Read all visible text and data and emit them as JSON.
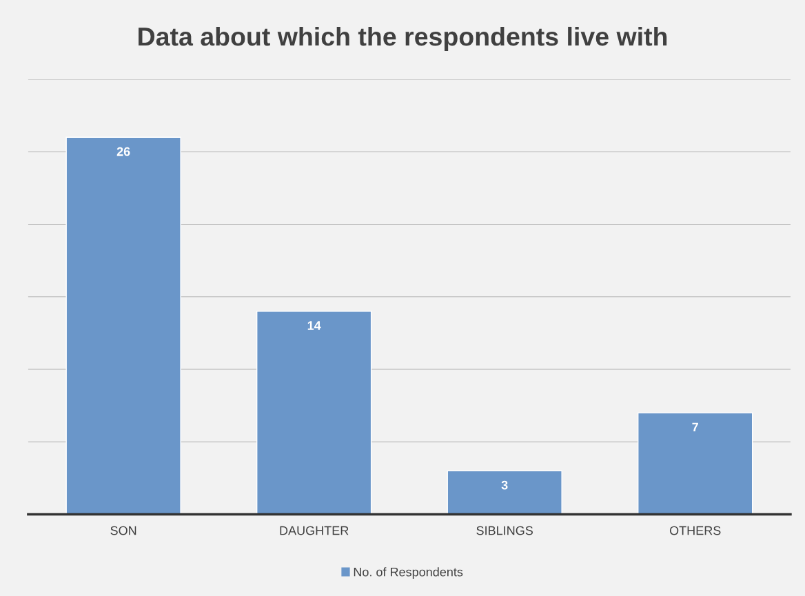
{
  "chart_data": {
    "type": "bar",
    "title": "Data about which the respondents live with",
    "categories": [
      "SON",
      "DAUGHTER",
      "SIBLINGS",
      "OTHERS"
    ],
    "series": [
      {
        "name": "No. of Respondents",
        "color": "#6a96c9",
        "values": [
          26,
          14,
          3,
          7
        ]
      }
    ],
    "ylim": [
      0,
      30
    ],
    "yticks": [
      {
        "value": 0,
        "label": null
      },
      {
        "value": 5,
        "label": null
      },
      {
        "value": 10,
        "label": null
      },
      {
        "value": 15,
        "label": null
      },
      {
        "value": 20,
        "label": null
      },
      {
        "value": 25,
        "label": null
      },
      {
        "value": 30,
        "label": null
      }
    ],
    "tick_labels": "x",
    "grid": "y",
    "legend": "bottom",
    "data_labels": true
  }
}
